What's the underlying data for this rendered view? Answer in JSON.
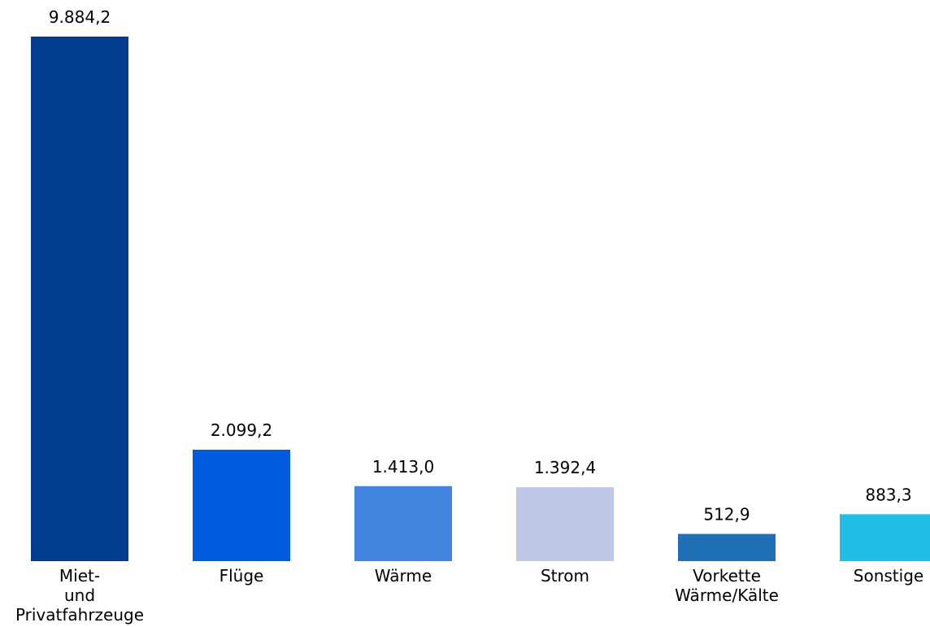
{
  "chart_data": {
    "type": "bar",
    "categories": [
      [
        "Miet-",
        "und",
        "Privatfahrzeuge"
      ],
      [
        "Flüge"
      ],
      [
        "Wärme"
      ],
      [
        "Strom"
      ],
      [
        "Vorkette",
        "Wärme/Kälte"
      ],
      [
        "Sonstige"
      ]
    ],
    "values": [
      9884.2,
      2099.2,
      1413.0,
      1392.4,
      512.9,
      883.3
    ],
    "value_labels": [
      "9.884,2",
      "2.099,2",
      "1.413,0",
      "1.392,4",
      "512,9",
      "883,3"
    ],
    "colors": [
      "#003d8f",
      "#005cde",
      "#4285e0",
      "#bec8e6",
      "#1e6fb6",
      "#20c0e6"
    ],
    "ylim": [
      0,
      9884.2
    ],
    "grid": false,
    "legend": "none"
  }
}
